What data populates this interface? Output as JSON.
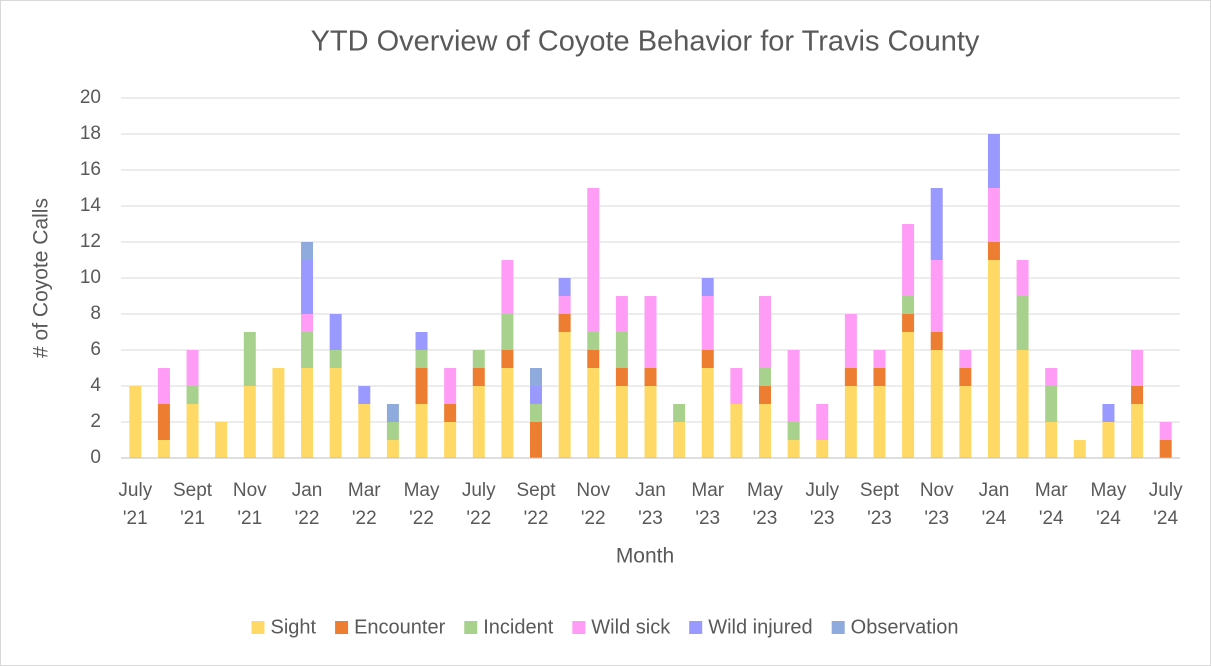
{
  "chart_data": {
    "type": "bar",
    "stacked": true,
    "title": "YTD Overview of Coyote Behavior for Travis County",
    "x_label": "Month",
    "y_label": "# of Coyote Calls",
    "categories": [
      "July '21",
      null,
      "Sept '21",
      null,
      "Nov '21",
      null,
      "Jan '22",
      null,
      "Mar '22",
      null,
      "May '22",
      null,
      "July '22",
      null,
      "Sept '22",
      null,
      "Nov '22",
      null,
      "Jan '23",
      null,
      "Mar '23",
      null,
      "May '23",
      null,
      "July '23",
      null,
      "Sept '23",
      null,
      "Nov '23",
      null,
      "Jan '24",
      null,
      "Mar '24",
      null,
      "May '24",
      null,
      "July '24"
    ],
    "series": [
      {
        "name": "Sight",
        "color": "#ffd966",
        "values": [
          4,
          1,
          3,
          2,
          4,
          5,
          5,
          5,
          3,
          1,
          3,
          2,
          4,
          5,
          0,
          7,
          5,
          4,
          4,
          2,
          5,
          3,
          3,
          1,
          1,
          4,
          4,
          7,
          6,
          4,
          11,
          6,
          2,
          1,
          2,
          3,
          0
        ]
      },
      {
        "name": "Encounter",
        "color": "#ed7d31",
        "values": [
          0,
          2,
          0,
          0,
          0,
          0,
          0,
          0,
          0,
          0,
          2,
          1,
          1,
          1,
          2,
          1,
          1,
          1,
          1,
          0,
          1,
          0,
          1,
          0,
          0,
          1,
          1,
          1,
          1,
          1,
          1,
          0,
          0,
          0,
          0,
          1,
          1
        ]
      },
      {
        "name": "Incident",
        "color": "#a9d18e",
        "values": [
          0,
          0,
          1,
          0,
          3,
          0,
          2,
          1,
          0,
          1,
          1,
          0,
          1,
          2,
          1,
          0,
          1,
          2,
          0,
          1,
          0,
          0,
          1,
          1,
          0,
          0,
          0,
          1,
          0,
          0,
          0,
          3,
          2,
          0,
          0,
          0,
          0
        ]
      },
      {
        "name": "Wild sick",
        "color": "#ff9cf5",
        "values": [
          0,
          2,
          2,
          0,
          0,
          0,
          1,
          0,
          0,
          0,
          0,
          2,
          0,
          3,
          0,
          1,
          8,
          2,
          4,
          0,
          3,
          2,
          4,
          4,
          2,
          3,
          1,
          4,
          4,
          1,
          3,
          2,
          1,
          0,
          0,
          2,
          1
        ]
      },
      {
        "name": "Wild injured",
        "color": "#9999ff",
        "values": [
          0,
          0,
          0,
          0,
          0,
          0,
          3,
          2,
          1,
          0,
          1,
          0,
          0,
          0,
          1,
          1,
          0,
          0,
          0,
          0,
          1,
          0,
          0,
          0,
          0,
          0,
          0,
          0,
          4,
          0,
          3,
          0,
          0,
          0,
          1,
          0,
          0
        ]
      },
      {
        "name": "Observation",
        "color": "#8faadc",
        "values": [
          0,
          0,
          0,
          0,
          0,
          0,
          1,
          0,
          0,
          1,
          0,
          0,
          0,
          0,
          1,
          0,
          0,
          0,
          0,
          0,
          0,
          0,
          0,
          0,
          0,
          0,
          0,
          0,
          0,
          0,
          0,
          0,
          0,
          0,
          0,
          0,
          0
        ]
      }
    ],
    "ylim": [
      0,
      20
    ],
    "yticks": [
      0,
      2,
      4,
      6,
      8,
      10,
      12,
      14,
      16,
      18,
      20
    ],
    "grid": true,
    "legend": "bottom"
  }
}
